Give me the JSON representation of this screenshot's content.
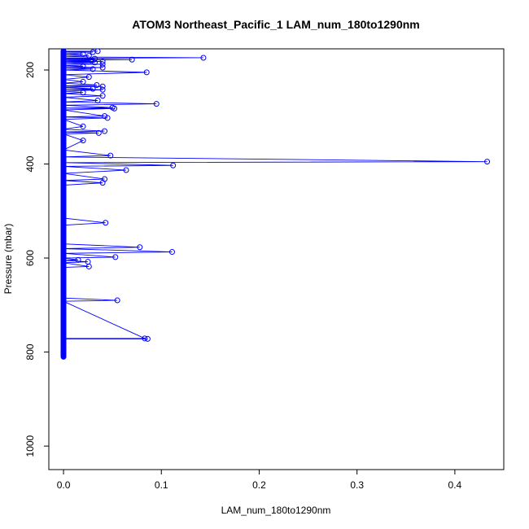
{
  "chart_data": {
    "type": "line",
    "title": "ATOM3 Northeast_Pacific_1 LAM_num_180to1290nm",
    "xlabel": "LAM_num_180to1290nm",
    "ylabel": "Pressure (mbar)",
    "xlim": [
      -0.015,
      0.45
    ],
    "ylim": [
      1050,
      155
    ],
    "y_reversed": true,
    "x_ticks": [
      0.0,
      0.1,
      0.2,
      0.3,
      0.4
    ],
    "x_tick_labels": [
      "0.0",
      "0.1",
      "0.2",
      "0.3",
      "0.4"
    ],
    "y_ticks": [
      200,
      400,
      600,
      800,
      1000
    ],
    "y_tick_labels": [
      "200",
      "400",
      "600",
      "800",
      "1000"
    ],
    "grid": false,
    "marker": "open-circle",
    "series_color": "#0000ff",
    "series": [
      {
        "points": [
          [
            0,
            160
          ],
          [
            0.035,
            160
          ],
          [
            0,
            161
          ],
          [
            0.03,
            162
          ],
          [
            0,
            164
          ],
          [
            0.02,
            166
          ],
          [
            0,
            168
          ],
          [
            0.026,
            170
          ],
          [
            0,
            172
          ],
          [
            0.143,
            174
          ],
          [
            0,
            175
          ],
          [
            0.032,
            176
          ],
          [
            0,
            177
          ],
          [
            0.07,
            178
          ],
          [
            0,
            179
          ],
          [
            0.028,
            180
          ],
          [
            0,
            181
          ],
          [
            0.04,
            182
          ],
          [
            0,
            183
          ],
          [
            0.032,
            184
          ],
          [
            0,
            186
          ],
          [
            0.04,
            188
          ],
          [
            0,
            190
          ],
          [
            0.02,
            192
          ],
          [
            0,
            193
          ],
          [
            0.04,
            195
          ],
          [
            0,
            196
          ],
          [
            0.03,
            198
          ],
          [
            0,
            200
          ],
          [
            0.085,
            205
          ],
          [
            0,
            210
          ],
          [
            0.026,
            215
          ],
          [
            0,
            220
          ],
          [
            0.02,
            225
          ],
          [
            0,
            228
          ],
          [
            0.034,
            232
          ],
          [
            0,
            234
          ],
          [
            0.04,
            235
          ],
          [
            0,
            237
          ],
          [
            0.03,
            240
          ],
          [
            0,
            241
          ],
          [
            0.04,
            242
          ],
          [
            0,
            245
          ],
          [
            0.02,
            248
          ],
          [
            0,
            250
          ],
          [
            0.04,
            255
          ],
          [
            0,
            258
          ],
          [
            0.035,
            265
          ],
          [
            0,
            268
          ],
          [
            0.095,
            272
          ],
          [
            0,
            275
          ],
          [
            0.05,
            280
          ],
          [
            0,
            281
          ],
          [
            0.052,
            282
          ],
          [
            0,
            285
          ],
          [
            0.042,
            298
          ],
          [
            0,
            300
          ],
          [
            0.045,
            302
          ],
          [
            0,
            305
          ],
          [
            0.02,
            320
          ],
          [
            0,
            326
          ],
          [
            0.042,
            330
          ],
          [
            0,
            332
          ],
          [
            0.036,
            334
          ],
          [
            0,
            336
          ],
          [
            0.02,
            350
          ],
          [
            0,
            370
          ],
          [
            0.048,
            382
          ],
          [
            0,
            385
          ],
          [
            0.433,
            395
          ],
          [
            0,
            397
          ],
          [
            0.112,
            403
          ],
          [
            0,
            405
          ],
          [
            0.064,
            413
          ],
          [
            0,
            420
          ],
          [
            0.042,
            432
          ],
          [
            0,
            435
          ],
          [
            0.04,
            440
          ],
          [
            0,
            445
          ],
          [
            0,
            515
          ],
          [
            0.043,
            525
          ],
          [
            0,
            530
          ],
          [
            0,
            570
          ],
          [
            0.078,
            577
          ],
          [
            0,
            580
          ],
          [
            0.111,
            587
          ],
          [
            0,
            590
          ],
          [
            0.053,
            598
          ],
          [
            0,
            600
          ],
          [
            0.015,
            604
          ],
          [
            0,
            605
          ],
          [
            0.025,
            608
          ],
          [
            0,
            610
          ],
          [
            0.026,
            618
          ],
          [
            0,
            620
          ],
          [
            0,
            685
          ],
          [
            0.055,
            690
          ],
          [
            0,
            692
          ],
          [
            0.083,
            771
          ],
          [
            0,
            771
          ],
          [
            0.086,
            772
          ],
          [
            0,
            772
          ],
          [
            0,
            810
          ]
        ]
      }
    ]
  }
}
